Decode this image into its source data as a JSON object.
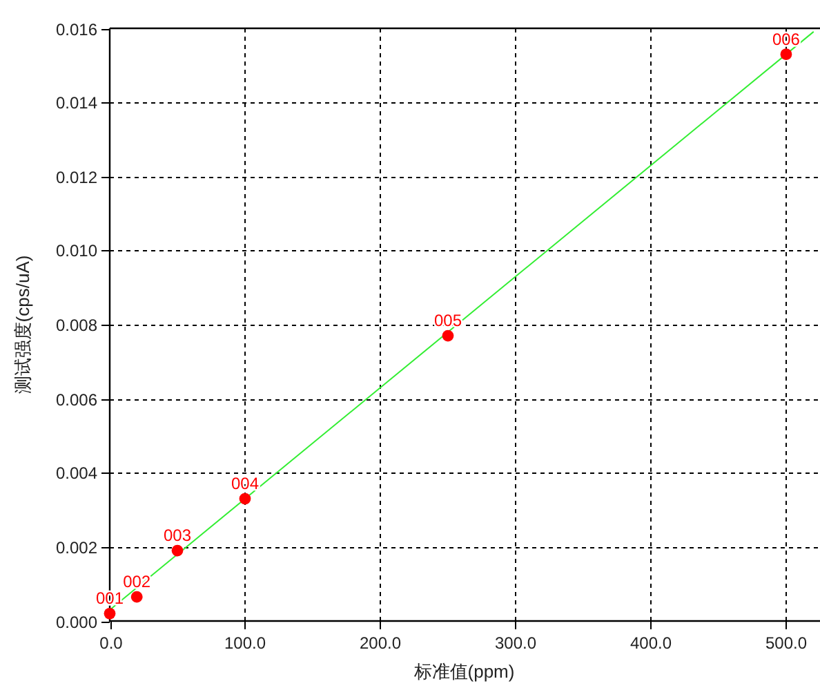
{
  "chart_data": {
    "type": "scatter",
    "xlabel": "标准值(ppm)",
    "ylabel": "测试强度(cps/uA)",
    "xlim": [
      0,
      524
    ],
    "ylim": [
      0,
      0.016
    ],
    "xticks": [
      {
        "value": 0,
        "label": "0.0"
      },
      {
        "value": 100,
        "label": "100.0"
      },
      {
        "value": 200,
        "label": "200.0"
      },
      {
        "value": 300,
        "label": "300.0"
      },
      {
        "value": 400,
        "label": "400.0"
      },
      {
        "value": 500,
        "label": "500.0"
      }
    ],
    "yticks": [
      {
        "value": 0,
        "label": "0.000"
      },
      {
        "value": 0.002,
        "label": "0.002"
      },
      {
        "value": 0.004,
        "label": "0.004"
      },
      {
        "value": 0.006,
        "label": "0.006"
      },
      {
        "value": 0.008,
        "label": "0.008"
      },
      {
        "value": 0.01,
        "label": "0.010"
      },
      {
        "value": 0.012,
        "label": "0.012"
      },
      {
        "value": 0.014,
        "label": "0.014"
      },
      {
        "value": 0.016,
        "label": "0.016"
      }
    ],
    "grid": true,
    "series": [
      {
        "color": "#ff0000",
        "marker": "circle",
        "x": [
          0,
          20,
          50,
          100,
          250,
          500
        ],
        "values": [
          0.0002,
          0.00065,
          0.0019,
          0.0033,
          0.0077,
          0.0153
        ]
      },
      {
        "type": "line",
        "color": "#33ee33",
        "marker": "none",
        "line_style": "solid",
        "x": [
          0,
          520
        ],
        "values": [
          0.0003,
          0.0159
        ]
      }
    ],
    "annotations": [
      {
        "text": "001",
        "x": 0,
        "y": 0.0002
      },
      {
        "text": "002",
        "x": 20,
        "y": 0.00065
      },
      {
        "text": "003",
        "x": 50,
        "y": 0.0019
      },
      {
        "text": "004",
        "x": 100,
        "y": 0.0033
      },
      {
        "text": "005",
        "x": 250,
        "y": 0.0077
      },
      {
        "text": "006",
        "x": 500,
        "y": 0.0153
      }
    ]
  }
}
